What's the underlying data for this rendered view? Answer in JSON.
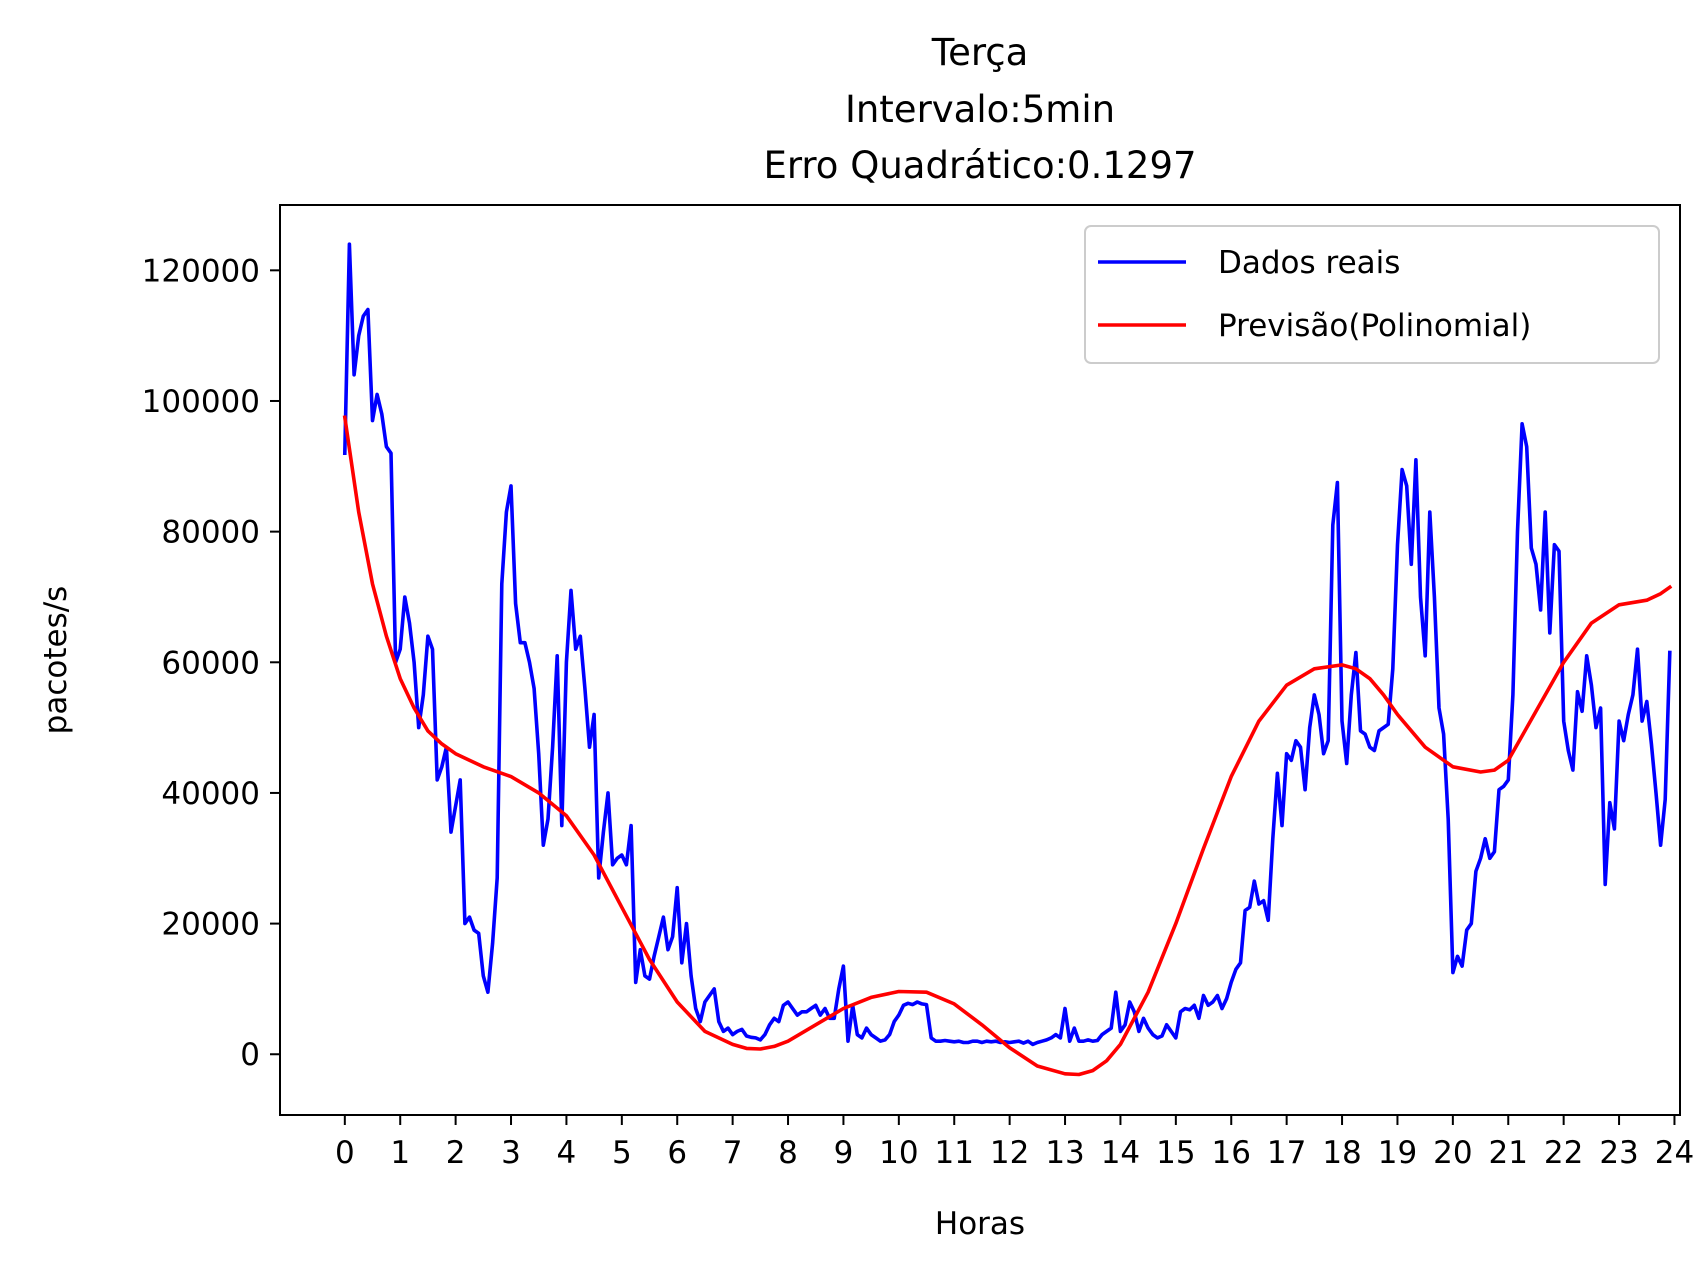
{
  "chart_data": {
    "type": "line",
    "title": [
      "Terça",
      "Intervalo:5min",
      "Erro Quadrático:0.1297"
    ],
    "xlabel": "Horas",
    "ylabel": "pacotes/s",
    "xlim": [
      -1.17,
      24.1
    ],
    "ylim": [
      -9300,
      130000
    ],
    "xticks": [
      0,
      1,
      2,
      3,
      4,
      5,
      6,
      7,
      8,
      9,
      10,
      11,
      12,
      13,
      14,
      15,
      16,
      17,
      18,
      19,
      20,
      21,
      22,
      23,
      24
    ],
    "xtick_labels": [
      "0",
      "1",
      "2",
      "3",
      "4",
      "5",
      "6",
      "7",
      "8",
      "9",
      "10",
      "11",
      "12",
      "13",
      "14",
      "15",
      "16",
      "17",
      "18",
      "19",
      "20",
      "21",
      "22",
      "23",
      "24"
    ],
    "yticks": [
      0,
      20000,
      40000,
      60000,
      80000,
      100000,
      120000
    ],
    "ytick_labels": [
      "0",
      "20000",
      "40000",
      "60000",
      "80000",
      "100000",
      "120000"
    ],
    "grid": false,
    "legend_position": "top-right",
    "series": [
      {
        "name": "Dados reais",
        "color": "#0000ff",
        "x": [
          0,
          0.0833,
          0.1667,
          0.25,
          0.3333,
          0.4167,
          0.5,
          0.5833,
          0.6667,
          0.75,
          0.8333,
          0.9167,
          1,
          1.0833,
          1.1667,
          1.25,
          1.3333,
          1.4167,
          1.5,
          1.5833,
          1.6667,
          1.75,
          1.8333,
          1.9167,
          2,
          2.0833,
          2.1667,
          2.25,
          2.3333,
          2.4167,
          2.5,
          2.5833,
          2.6667,
          2.75,
          2.8333,
          2.9167,
          3,
          3.0833,
          3.1667,
          3.25,
          3.3333,
          3.4167,
          3.5,
          3.5833,
          3.6667,
          3.75,
          3.8333,
          3.9167,
          4,
          4.0833,
          4.1667,
          4.25,
          4.3333,
          4.4167,
          4.5,
          4.5833,
          4.6667,
          4.75,
          4.8333,
          4.9167,
          5,
          5.0833,
          5.1667,
          5.25,
          5.3333,
          5.4167,
          5.5,
          5.5833,
          5.6667,
          5.75,
          5.8333,
          5.9167,
          6,
          6.0833,
          6.1667,
          6.25,
          6.3333,
          6.4167,
          6.5,
          6.5833,
          6.6667,
          6.75,
          6.8333,
          6.9167,
          7,
          7.0833,
          7.1667,
          7.25,
          7.3333,
          7.4167,
          7.5,
          7.5833,
          7.6667,
          7.75,
          7.8333,
          7.9167,
          8,
          8.0833,
          8.1667,
          8.25,
          8.3333,
          8.4167,
          8.5,
          8.5833,
          8.6667,
          8.75,
          8.8333,
          8.9167,
          9,
          9.0833,
          9.1667,
          9.25,
          9.3333,
          9.4167,
          9.5,
          9.5833,
          9.6667,
          9.75,
          9.8333,
          9.9167,
          10,
          10.0833,
          10.1667,
          10.25,
          10.3333,
          10.4167,
          10.5,
          10.5833,
          10.6667,
          10.75,
          10.8333,
          10.9167,
          11,
          11.0833,
          11.1667,
          11.25,
          11.3333,
          11.4167,
          11.5,
          11.5833,
          11.6667,
          11.75,
          11.8333,
          11.9167,
          12,
          12.0833,
          12.1667,
          12.25,
          12.3333,
          12.4167,
          12.5,
          12.5833,
          12.6667,
          12.75,
          12.8333,
          12.9167,
          13,
          13.0833,
          13.1667,
          13.25,
          13.3333,
          13.4167,
          13.5,
          13.5833,
          13.6667,
          13.75,
          13.8333,
          13.9167,
          14,
          14.0833,
          14.1667,
          14.25,
          14.3333,
          14.4167,
          14.5,
          14.5833,
          14.6667,
          14.75,
          14.8333,
          14.9167,
          15,
          15.0833,
          15.1667,
          15.25,
          15.3333,
          15.4167,
          15.5,
          15.5833,
          15.6667,
          15.75,
          15.8333,
          15.9167,
          16,
          16.0833,
          16.1667,
          16.25,
          16.3333,
          16.4167,
          16.5,
          16.5833,
          16.6667,
          16.75,
          16.8333,
          16.9167,
          17,
          17.0833,
          17.1667,
          17.25,
          17.3333,
          17.4167,
          17.5,
          17.5833,
          17.6667,
          17.75,
          17.8333,
          17.9167,
          18,
          18.0833,
          18.1667,
          18.25,
          18.3333,
          18.4167,
          18.5,
          18.5833,
          18.6667,
          18.75,
          18.8333,
          18.9167,
          19,
          19.0833,
          19.1667,
          19.25,
          19.3333,
          19.4167,
          19.5,
          19.5833,
          19.6667,
          19.75,
          19.8333,
          19.9167,
          20,
          20.0833,
          20.1667,
          20.25,
          20.3333,
          20.4167,
          20.5,
          20.5833,
          20.6667,
          20.75,
          20.8333,
          20.9167,
          21,
          21.0833,
          21.1667,
          21.25,
          21.3333,
          21.4167,
          21.5,
          21.5833,
          21.6667,
          21.75,
          21.8333,
          21.9167,
          22,
          22.0833,
          22.1667,
          22.25,
          22.3333,
          22.4167,
          22.5,
          22.5833,
          22.6667,
          22.75,
          22.8333,
          22.9167,
          23,
          23.0833,
          23.1667,
          23.25,
          23.3333,
          23.4167,
          23.5,
          23.5833,
          23.6667,
          23.75,
          23.8333,
          23.9167
        ],
        "y": [
          92000,
          124000,
          104000,
          110000,
          113000,
          114000,
          97000,
          101000,
          98000,
          93000,
          92000,
          60000,
          62000,
          70000,
          66000,
          60000,
          50000,
          55000,
          64000,
          62000,
          42000,
          44000,
          47000,
          34000,
          38000,
          42000,
          20000,
          21000,
          19000,
          18500,
          12000,
          9500,
          17000,
          27000,
          72000,
          83000,
          87000,
          69000,
          63000,
          63000,
          60000,
          56000,
          46000,
          32000,
          36000,
          47000,
          61000,
          35000,
          60000,
          71000,
          62000,
          64000,
          56000,
          47000,
          52000,
          27000,
          34000,
          40000,
          29000,
          30000,
          30500,
          29000,
          35000,
          11000,
          16000,
          12000,
          11500,
          15000,
          18000,
          21000,
          16000,
          18000,
          25500,
          14000,
          20000,
          12000,
          7000,
          5000,
          8000,
          9000,
          10000,
          5000,
          3500,
          4000,
          3000,
          3500,
          3800,
          2800,
          2600,
          2500,
          2200,
          3000,
          4500,
          5500,
          5000,
          7500,
          8000,
          7000,
          6000,
          6500,
          6500,
          7000,
          7500,
          6000,
          7000,
          5500,
          5500,
          10000,
          13500,
          2000,
          7500,
          3000,
          2500,
          4000,
          3000,
          2500,
          2000,
          2200,
          3000,
          5000,
          6000,
          7500,
          7800,
          7600,
          8000,
          7700,
          7600,
          2500,
          2000,
          2000,
          2100,
          2000,
          1900,
          2000,
          1800,
          1800,
          2000,
          2000,
          1800,
          2000,
          1900,
          2000,
          1800,
          1900,
          1800,
          1900,
          2000,
          1700,
          2000,
          1500,
          1800,
          2000,
          2200,
          2500,
          3000,
          2500,
          7000,
          2000,
          4000,
          2000,
          2000,
          2200,
          2000,
          2100,
          3000,
          3500,
          4000,
          9500,
          3500,
          4500,
          8000,
          6500,
          3500,
          5500,
          4000,
          3000,
          2500,
          2800,
          4500,
          3500,
          2500,
          6500,
          7000,
          6800,
          7500,
          5500,
          9000,
          7500,
          8000,
          9000,
          7000,
          8500,
          11000,
          13000,
          14000,
          22000,
          22500,
          26500,
          23000,
          23500,
          20500,
          33000,
          43000,
          35000,
          46000,
          45000,
          48000,
          47000,
          40500,
          50000,
          55000,
          52000,
          46000,
          48000,
          81000,
          87500,
          51000,
          44500,
          55000,
          61500,
          49500,
          49000,
          47000,
          46500,
          49500,
          50000,
          50500,
          59000,
          78000,
          89500,
          87000,
          75000,
          91000,
          70000,
          61000,
          83000,
          70000,
          53000,
          49000,
          36000,
          12500,
          15000,
          13500,
          19000,
          20000,
          28000,
          30000,
          33000,
          30000,
          31000,
          40500,
          41000,
          42000,
          55000,
          80000,
          96500,
          93000,
          77500,
          75000,
          68000,
          83000,
          64500,
          78000,
          77000,
          51000,
          46500,
          43500,
          55500,
          52500,
          61000,
          56500,
          50000,
          53000,
          26000,
          38500,
          34500,
          51000,
          48000,
          52000,
          55000,
          62000,
          51000,
          54000,
          47500,
          40000,
          32000,
          39000,
          61500
        ]
      },
      {
        "name": "Previsão(Polinomial)",
        "color": "#ff0000",
        "x": [
          0,
          0.25,
          0.5,
          0.75,
          1,
          1.25,
          1.5,
          1.75,
          2,
          2.5,
          3,
          3.5,
          4,
          4.5,
          5,
          5.5,
          6,
          6.5,
          7,
          7.25,
          7.5,
          7.75,
          8,
          8.5,
          9,
          9.5,
          10,
          10.5,
          11,
          11.5,
          12,
          12.5,
          13,
          13.25,
          13.5,
          13.75,
          14,
          14.5,
          15,
          15.5,
          16,
          16.5,
          17,
          17.5,
          18,
          18.25,
          18.5,
          18.75,
          19,
          19.5,
          20,
          20.5,
          20.75,
          21,
          21.5,
          22,
          22.5,
          23,
          23.5,
          23.75,
          23.9167
        ],
        "y": [
          97500,
          83000,
          72000,
          64000,
          57500,
          53000,
          49500,
          47500,
          46000,
          44000,
          42500,
          40000,
          36500,
          30500,
          22500,
          14500,
          8000,
          3500,
          1500,
          900,
          800,
          1200,
          2000,
          4500,
          7000,
          8700,
          9600,
          9500,
          7700,
          4500,
          1000,
          -1800,
          -3000,
          -3100,
          -2500,
          -1000,
          1500,
          9500,
          20000,
          31500,
          42500,
          51000,
          56500,
          59000,
          59600,
          59000,
          57500,
          55000,
          52000,
          47000,
          44000,
          43200,
          43500,
          45000,
          52500,
          60000,
          66000,
          68800,
          69500,
          70500,
          71500
        ]
      }
    ]
  }
}
